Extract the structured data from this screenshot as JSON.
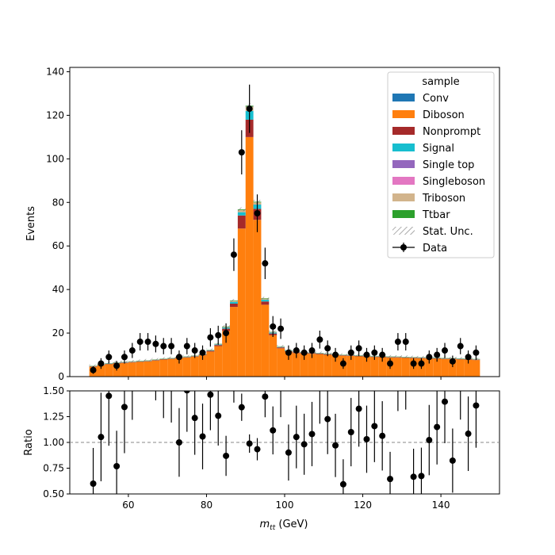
{
  "chart_data": [
    {
      "type": "bar",
      "subtype": "stacked-histogram-with-data-points",
      "title": "",
      "xlabel": "",
      "ylabel": "Events",
      "xlim": [
        45,
        155
      ],
      "ylim": [
        0,
        142
      ],
      "yticks": [
        0,
        20,
        40,
        60,
        80,
        100,
        120,
        140
      ],
      "xticks": [
        60,
        80,
        100,
        120,
        140
      ],
      "bin_width": 2,
      "bin_centers": [
        51,
        53,
        55,
        57,
        59,
        61,
        63,
        65,
        67,
        69,
        71,
        73,
        75,
        77,
        79,
        81,
        83,
        85,
        87,
        89,
        91,
        93,
        95,
        97,
        99,
        101,
        103,
        105,
        107,
        109,
        111,
        113,
        115,
        117,
        119,
        121,
        123,
        125,
        127,
        129,
        131,
        133,
        135,
        137,
        139,
        141,
        143,
        145,
        147,
        149
      ],
      "series": [
        {
          "name": "Conv",
          "color": "#1f77b4",
          "values": [
            0,
            0,
            0,
            0,
            0,
            0,
            0,
            0,
            0,
            0,
            0,
            0,
            0,
            0,
            0,
            0,
            0,
            0,
            0,
            0,
            0,
            0,
            0,
            0,
            0,
            0,
            0,
            0,
            0,
            0,
            0,
            0,
            0,
            0,
            0,
            0,
            0,
            0,
            0,
            0,
            0,
            0,
            0,
            0,
            0,
            0,
            0,
            0,
            0,
            0
          ]
        },
        {
          "name": "Diboson",
          "color": "#ff7f0e",
          "values": [
            4.5,
            5.2,
            5.7,
            6.0,
            6.2,
            6.5,
            6.8,
            7.0,
            7.4,
            7.8,
            8.1,
            8.5,
            8.8,
            9.2,
            9.8,
            11.5,
            14.0,
            21.0,
            32.0,
            68.0,
            110.0,
            72.0,
            33.0,
            19.0,
            13.0,
            11.5,
            10.8,
            10.6,
            10.5,
            10.3,
            10.0,
            9.8,
            9.6,
            9.5,
            9.3,
            9.2,
            9.0,
            8.9,
            8.8,
            8.7,
            8.6,
            8.5,
            8.4,
            8.3,
            8.2,
            8.1,
            8.0,
            7.9,
            7.8,
            7.6
          ]
        },
        {
          "name": "Nonprompt",
          "color": "#a52a2a",
          "values": [
            0.2,
            0.2,
            0.2,
            0.2,
            0.2,
            0.2,
            0.2,
            0.2,
            0.2,
            0.2,
            0.2,
            0.2,
            0.2,
            0.2,
            0.3,
            0.4,
            0.5,
            1.0,
            1.5,
            6.0,
            8.0,
            5.0,
            1.5,
            0.8,
            0.4,
            0.3,
            0.3,
            0.3,
            0.3,
            0.3,
            0.3,
            0.2,
            0.2,
            0.2,
            0.2,
            0.2,
            0.2,
            0.2,
            0.2,
            0.2,
            0.2,
            0.2,
            0.2,
            0.2,
            0.2,
            0.2,
            0.2,
            0.2,
            0.2,
            0.2
          ]
        },
        {
          "name": "Signal",
          "color": "#17becf",
          "values": [
            0.1,
            0.1,
            0.1,
            0.1,
            0.1,
            0.1,
            0.1,
            0.1,
            0.1,
            0.1,
            0.1,
            0.1,
            0.1,
            0.1,
            0.1,
            0.2,
            0.3,
            0.5,
            0.8,
            1.5,
            4.0,
            2.0,
            0.8,
            0.4,
            0.2,
            0.2,
            0.1,
            0.1,
            0.1,
            0.1,
            0.1,
            0.1,
            0.1,
            0.1,
            0.1,
            0.1,
            0.1,
            0.1,
            0.1,
            0.1,
            0.1,
            0.1,
            0.1,
            0.1,
            0.1,
            0.1,
            0.1,
            0.1,
            0.1,
            0.1
          ]
        },
        {
          "name": "Single top",
          "color": "#9467bd",
          "values": [
            0,
            0,
            0,
            0,
            0,
            0,
            0,
            0,
            0,
            0,
            0,
            0,
            0,
            0,
            0,
            0,
            0,
            0,
            0,
            0,
            0,
            0,
            0,
            0,
            0,
            0,
            0,
            0,
            0,
            0,
            0,
            0,
            0,
            0,
            0,
            0,
            0,
            0,
            0,
            0,
            0,
            0,
            0,
            0,
            0,
            0,
            0,
            0,
            0,
            0
          ]
        },
        {
          "name": "Singleboson",
          "color": "#e377c2",
          "values": [
            0,
            0,
            0,
            0,
            0,
            0,
            0,
            0,
            0,
            0,
            0,
            0,
            0,
            0,
            0,
            0,
            0,
            0,
            0,
            0,
            0,
            0,
            0,
            0,
            0,
            0,
            0,
            0,
            0,
            0,
            0,
            0,
            0,
            0,
            0,
            0,
            0,
            0,
            0,
            0,
            0,
            0,
            0,
            0,
            0,
            0,
            0,
            0,
            0,
            0
          ]
        },
        {
          "name": "Triboson",
          "color": "#d2b48c",
          "values": [
            0.1,
            0.1,
            0.1,
            0.1,
            0.1,
            0.1,
            0.1,
            0.1,
            0.1,
            0.1,
            0.1,
            0.1,
            0.1,
            0.1,
            0.1,
            0.1,
            0.2,
            0.3,
            0.5,
            1.0,
            2.0,
            1.0,
            0.5,
            0.3,
            0.2,
            0.1,
            0.1,
            0.1,
            0.1,
            0.1,
            0.1,
            0.1,
            0.1,
            0.1,
            0.1,
            0.1,
            0.1,
            0.1,
            0.1,
            0.1,
            0.1,
            0.1,
            0.1,
            0.1,
            0.1,
            0.1,
            0.1,
            0.1,
            0.1,
            0.1
          ]
        },
        {
          "name": "Ttbar",
          "color": "#2ca02c",
          "values": [
            0.1,
            0.1,
            0.1,
            0.1,
            0.1,
            0.1,
            0.1,
            0.1,
            0.1,
            0.1,
            0.1,
            0.1,
            0.1,
            0.1,
            0.1,
            0.1,
            0.1,
            0.2,
            0.2,
            0.3,
            0.4,
            0.3,
            0.2,
            0.1,
            0.1,
            0.1,
            0.1,
            0.1,
            0.1,
            0.1,
            0.1,
            0.1,
            0.1,
            0.1,
            0.1,
            0.1,
            0.1,
            0.1,
            0.1,
            0.1,
            0.1,
            0.1,
            0.1,
            0.1,
            0.1,
            0.1,
            0.1,
            0.1,
            0.1,
            0.1
          ]
        }
      ],
      "data": {
        "name": "Data",
        "x": [
          51,
          53,
          55,
          57,
          59,
          61,
          63,
          65,
          67,
          69,
          71,
          73,
          75,
          77,
          79,
          81,
          83,
          85,
          87,
          89,
          91,
          93,
          95,
          97,
          99,
          101,
          103,
          105,
          107,
          109,
          111,
          113,
          115,
          117,
          119,
          121,
          123,
          125,
          127,
          129,
          131,
          133,
          135,
          137,
          139,
          141,
          143,
          145,
          147,
          149
        ],
        "y": [
          3,
          6,
          9,
          5,
          9,
          12,
          16,
          16,
          15,
          14,
          14,
          9,
          14,
          12,
          11,
          18,
          19,
          20,
          56,
          103,
          123,
          75,
          52,
          23,
          22,
          11,
          12,
          11,
          12,
          17,
          13,
          10,
          6,
          11,
          13,
          10,
          11,
          10,
          6,
          16,
          16,
          6,
          6,
          9,
          10,
          12,
          7,
          14,
          9,
          11
        ]
      },
      "legend": {
        "title": "sample",
        "position": "top-right",
        "unc_label": "Stat. Unc.",
        "data_label": "Data"
      }
    },
    {
      "type": "scatter",
      "subtype": "ratio-with-errorbars",
      "xlabel": "m_tt (GeV)",
      "xlabel_main": "m",
      "xlabel_sub": "tt",
      "xlabel_unit": " (GeV)",
      "ylabel": "Ratio",
      "xlim": [
        45,
        155
      ],
      "ylim": [
        0.5,
        1.5
      ],
      "yticks": [
        "0.50",
        "0.75",
        "1.00",
        "1.25",
        "1.50"
      ],
      "xticks": [
        "60",
        "80",
        "100",
        "120",
        "140"
      ],
      "reference_line": 1.0
    }
  ]
}
